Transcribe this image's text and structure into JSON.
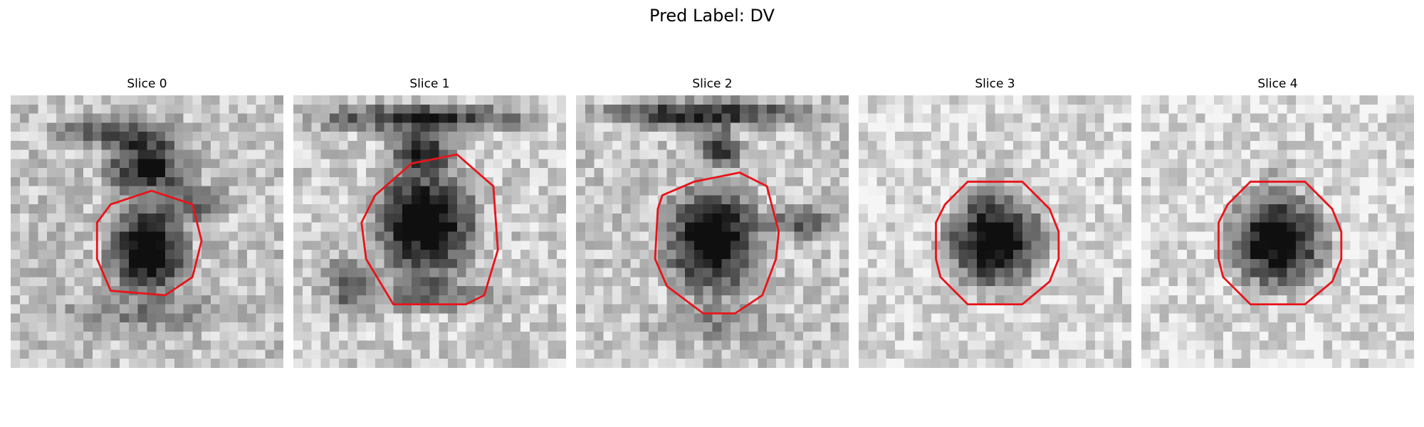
{
  "figure": {
    "title": "Pred Label: DV"
  },
  "slices": [
    {
      "title": "Slice 0",
      "seed": 11,
      "style": "small-blob-with-stalk",
      "contour_color": "#e8141a"
    },
    {
      "title": "Slice 1",
      "seed": 23,
      "style": "large-blob-with-bar",
      "contour_color": "#e8141a"
    },
    {
      "title": "Slice 2",
      "seed": 37,
      "style": "blob-with-bar-and-wing",
      "contour_color": "#e8141a"
    },
    {
      "title": "Slice 3",
      "seed": 51,
      "style": "octagon-blob",
      "contour_color": "#e8141a"
    },
    {
      "title": "Slice 4",
      "seed": 67,
      "style": "octagon-blob",
      "contour_color": "#e8141a"
    }
  ]
}
